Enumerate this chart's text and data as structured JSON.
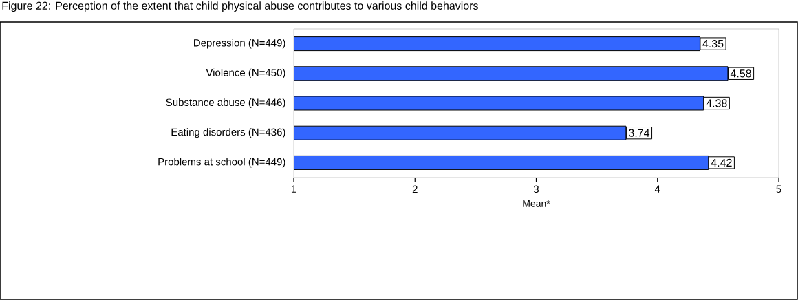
{
  "chart_data": {
    "type": "bar",
    "orientation": "horizontal",
    "title": "Figure 22: Perception of the extent that child physical abuse contributes to various child behaviors",
    "categories": [
      "Depression (N=449)",
      "Violence (N=450)",
      "Substance abuse (N=446)",
      "Eating disorders (N=436)",
      "Problems at school (N=449)"
    ],
    "values": [
      4.35,
      4.58,
      4.38,
      3.74,
      4.42
    ],
    "color": "#3366ff",
    "data_labels": true,
    "xlabel": "Mean*",
    "xlim": [
      1,
      5
    ],
    "xticks": [
      1,
      2,
      3,
      4,
      5
    ],
    "grid": false
  }
}
